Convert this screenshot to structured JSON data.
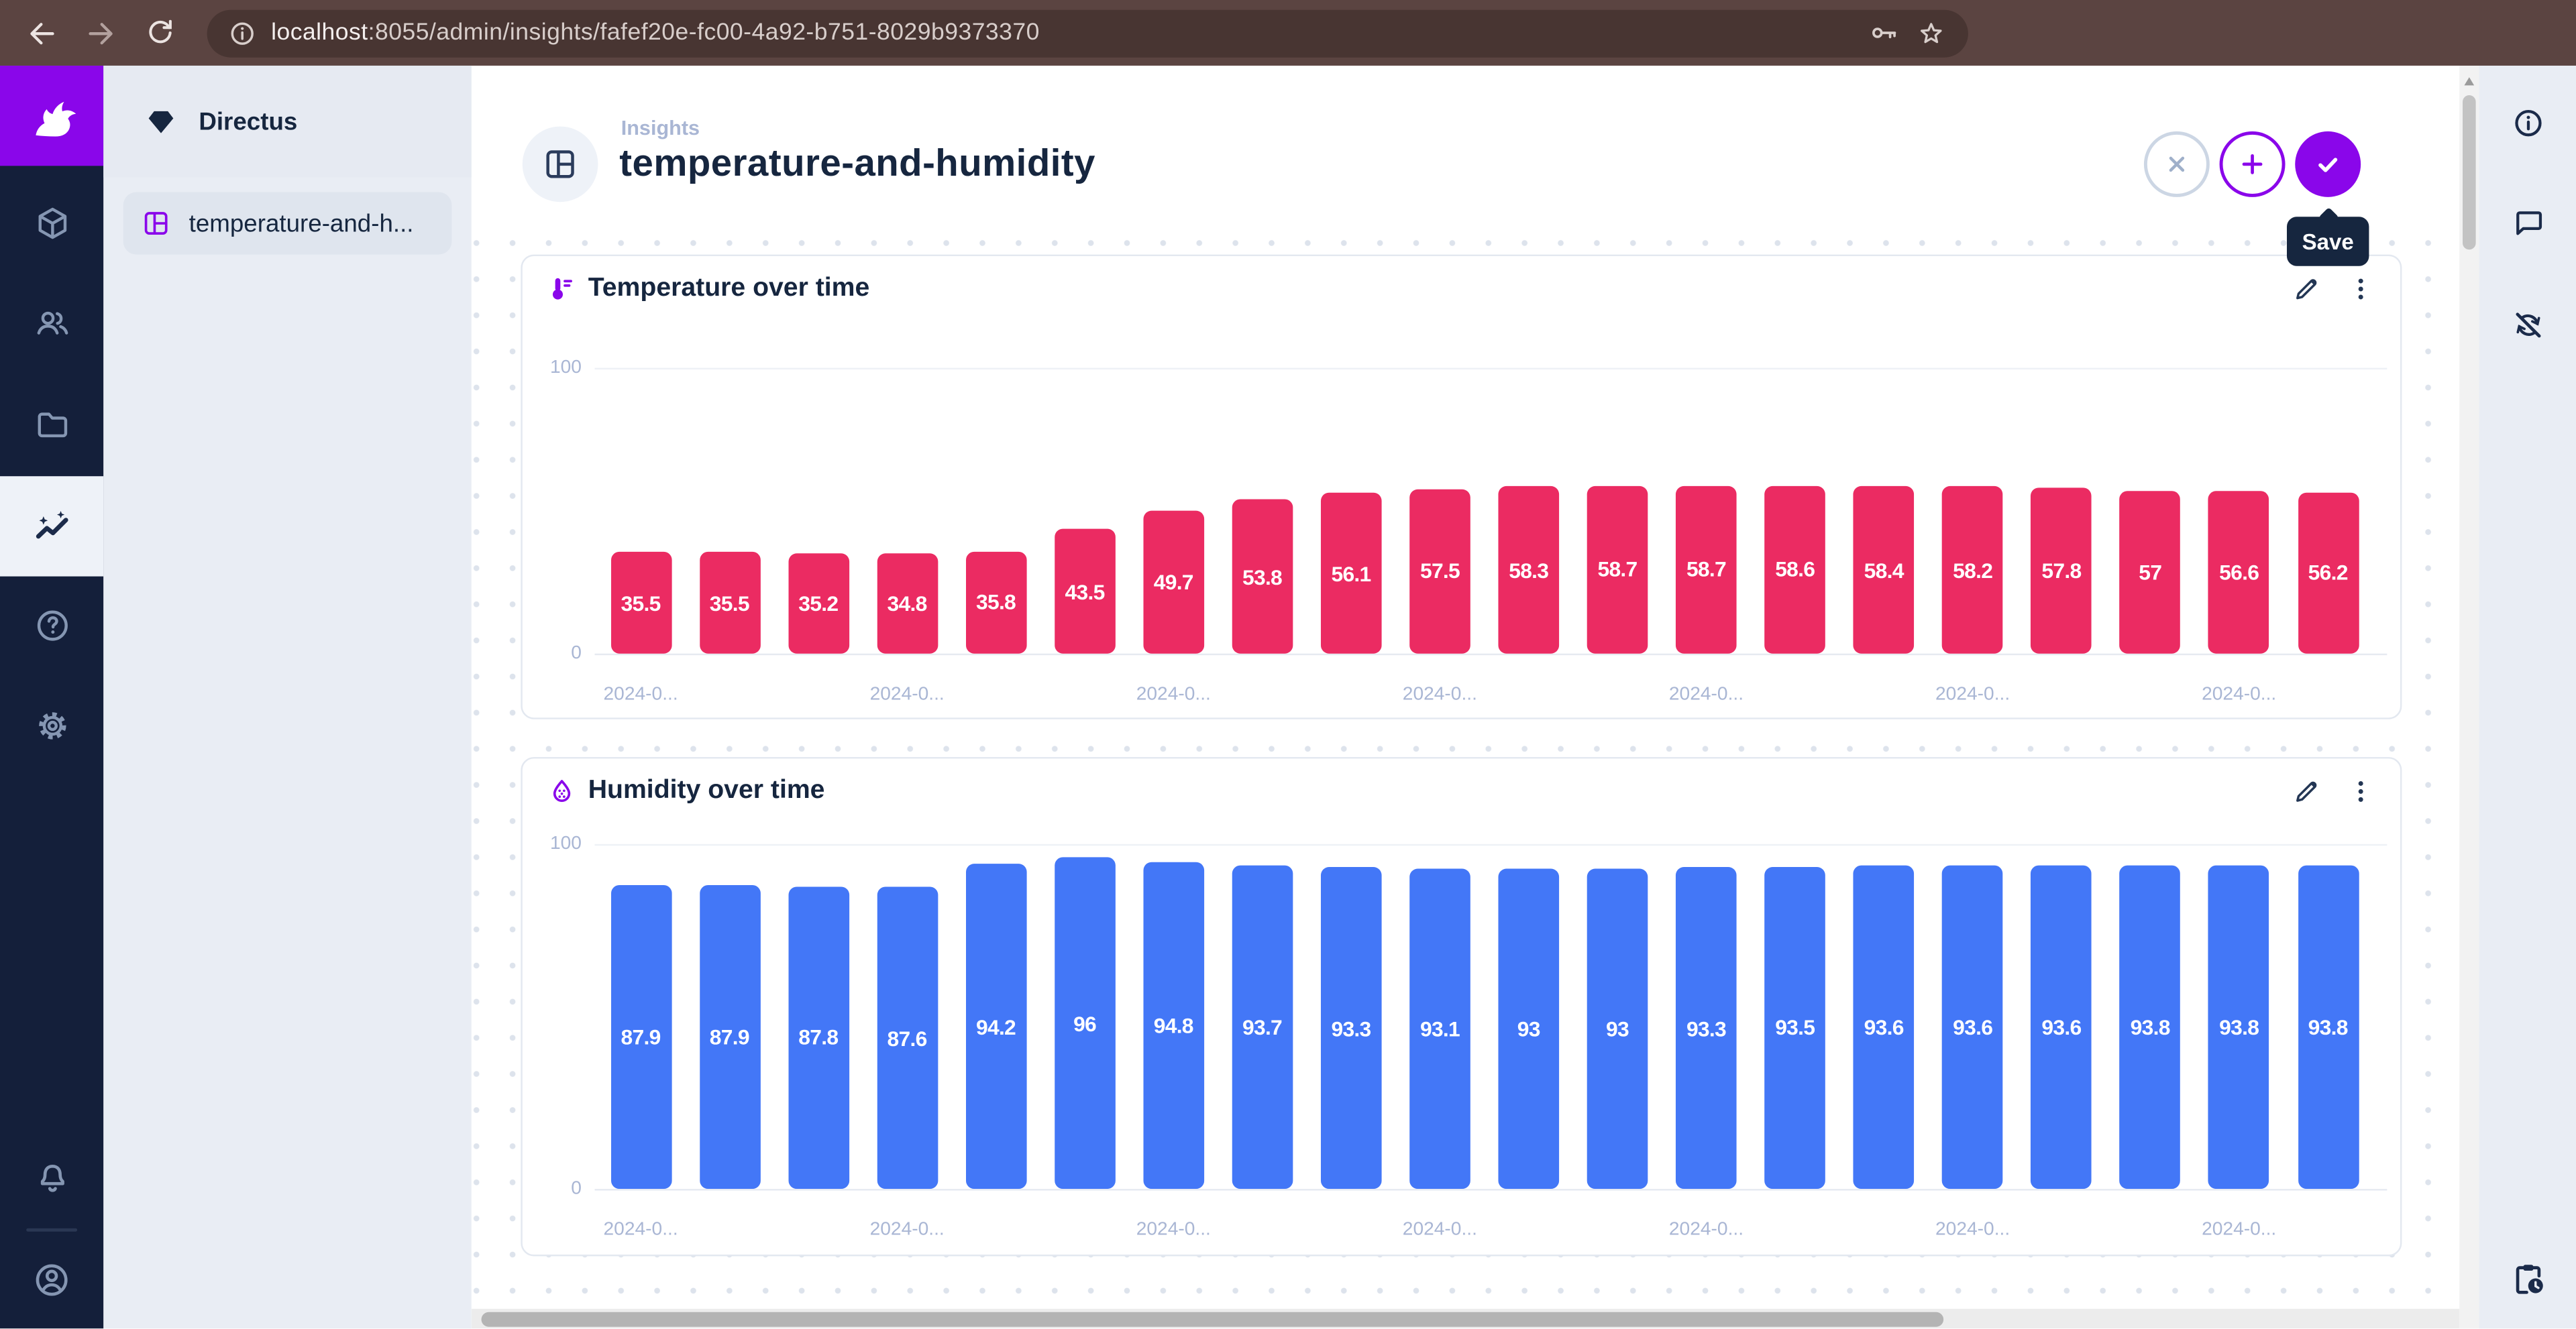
{
  "browser": {
    "url": {
      "host": "localhost",
      "rest": ":8055/admin/insights/fafef20e-fc00-4a92-b751-8029b9373370"
    }
  },
  "module_bar": {
    "items": [
      "content",
      "users",
      "files",
      "insights",
      "help",
      "settings"
    ],
    "active": "insights",
    "bottom_items": [
      "notifications",
      "account"
    ]
  },
  "sidebar": {
    "project_name": "Directus",
    "items": [
      {
        "label": "temperature-and-h...",
        "active": true
      }
    ]
  },
  "header": {
    "breadcrumb": "Insights",
    "title": "temperature-and-humidity",
    "buttons": [
      "discard",
      "add-panel",
      "save"
    ],
    "tooltip": "Save"
  },
  "right_sidebar": {
    "items": [
      "info",
      "comments",
      "auto-refresh-disabled",
      "activity"
    ]
  },
  "chart_data": [
    {
      "type": "bar",
      "title": "Temperature over time",
      "values": [
        35.5,
        35.5,
        35.2,
        34.8,
        35.8,
        43.5,
        49.7,
        53.8,
        56.1,
        57.5,
        58.3,
        58.7,
        58.7,
        58.6,
        58.4,
        58.2,
        57.8,
        57,
        56.6,
        56.2
      ],
      "x_tick_labels": [
        "2024-0...",
        "2024-0...",
        "2024-0...",
        "2024-0...",
        "2024-0...",
        "2024-0...",
        "2024-0..."
      ],
      "tick_every": 3,
      "y_ticks": [
        0,
        100
      ],
      "ylim": [
        0,
        100
      ],
      "xlabel": "",
      "ylabel": "",
      "grid": true,
      "legend": false,
      "bar_color": "#eb2b62",
      "label_color": "#ffffff"
    },
    {
      "type": "bar",
      "title": "Humidity over time",
      "values": [
        87.9,
        87.9,
        87.8,
        87.6,
        94.2,
        96,
        94.8,
        93.7,
        93.3,
        93.1,
        93,
        93,
        93.3,
        93.5,
        93.6,
        93.6,
        93.6,
        93.8,
        93.8,
        93.8
      ],
      "x_tick_labels": [
        "2024-0...",
        "2024-0...",
        "2024-0...",
        "2024-0...",
        "2024-0...",
        "2024-0...",
        "2024-0..."
      ],
      "tick_every": 3,
      "y_ticks": [
        0,
        100
      ],
      "ylim": [
        0,
        100
      ],
      "xlabel": "",
      "ylabel": "",
      "grid": true,
      "legend": false,
      "bar_color": "#4377f7",
      "label_color": "#ffffff"
    }
  ],
  "icons": {
    "browser": [
      "arrow-left",
      "arrow-right",
      "refresh",
      "site-info",
      "key",
      "star"
    ],
    "panels": [
      "thermometer",
      "humidity-drop",
      "pencil",
      "kebab-menu"
    ],
    "modules": [
      "directus-rabbit-logo",
      "cube",
      "people",
      "folder",
      "insights-sparkline",
      "help-circle",
      "gear",
      "bell",
      "user-circle"
    ],
    "right": [
      "info-circle",
      "comment-bubble",
      "sync-disabled",
      "pending-actions"
    ]
  },
  "colors": {
    "accent": "#8a06ea",
    "navy": "#16263f",
    "muted": "#a9b6d4",
    "module-bg": "#141f3a",
    "module-icon": "#8596b2",
    "sidebar-bg": "#e9edf4",
    "sidebar-head": "#e6eaf2",
    "sidebar-active": "#dfe5ee",
    "content-alt": "#eef2f8",
    "chrome": "#5b4441",
    "chrome-pill": "#483532",
    "chrome-text": "#f4efee",
    "chrome-text-dim": "#d8cecb",
    "bar-pink": "#eb2b62",
    "bar-blue": "#4377f7"
  }
}
